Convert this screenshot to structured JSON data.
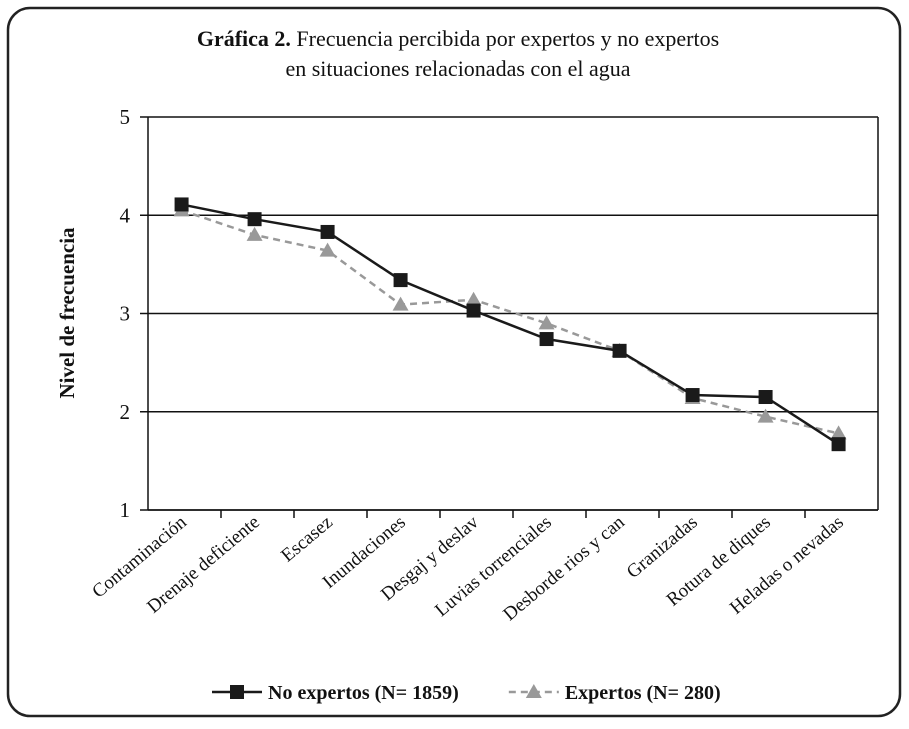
{
  "chart_data": {
    "type": "line",
    "title_prefix": "Gráfica 2.",
    "title": [
      "Frecuencia percibida por expertos y no expertos",
      "en situaciones relacionadas con el agua"
    ],
    "y_label": "Nivel de frecuencia",
    "categories": [
      "Contaminación",
      "Drenaje deficiente",
      "Escasez",
      "Inundaciones",
      "Desgaj y deslav",
      "Luvias torrenciales",
      "Desborde rios y can",
      "Granizadas",
      "Rotura de diques",
      "Heladas o nevadas"
    ],
    "series": [
      {
        "name": "No  expertos (N= 1859)",
        "color": "#1a1a1a",
        "marker": "square",
        "dash": false,
        "values": [
          4.11,
          3.96,
          3.83,
          3.34,
          3.03,
          2.74,
          2.62,
          2.17,
          2.15,
          1.67
        ]
      },
      {
        "name": "Expertos (N= 280)",
        "color": "#999999",
        "marker": "triangle",
        "dash": true,
        "values": [
          4.05,
          3.8,
          3.64,
          3.09,
          3.14,
          2.9,
          2.62,
          2.14,
          1.95,
          1.78
        ]
      }
    ],
    "ylim": [
      1,
      5
    ],
    "yticks": [
      1,
      2,
      3,
      4,
      5
    ],
    "grid": true,
    "legend": "bottom"
  }
}
